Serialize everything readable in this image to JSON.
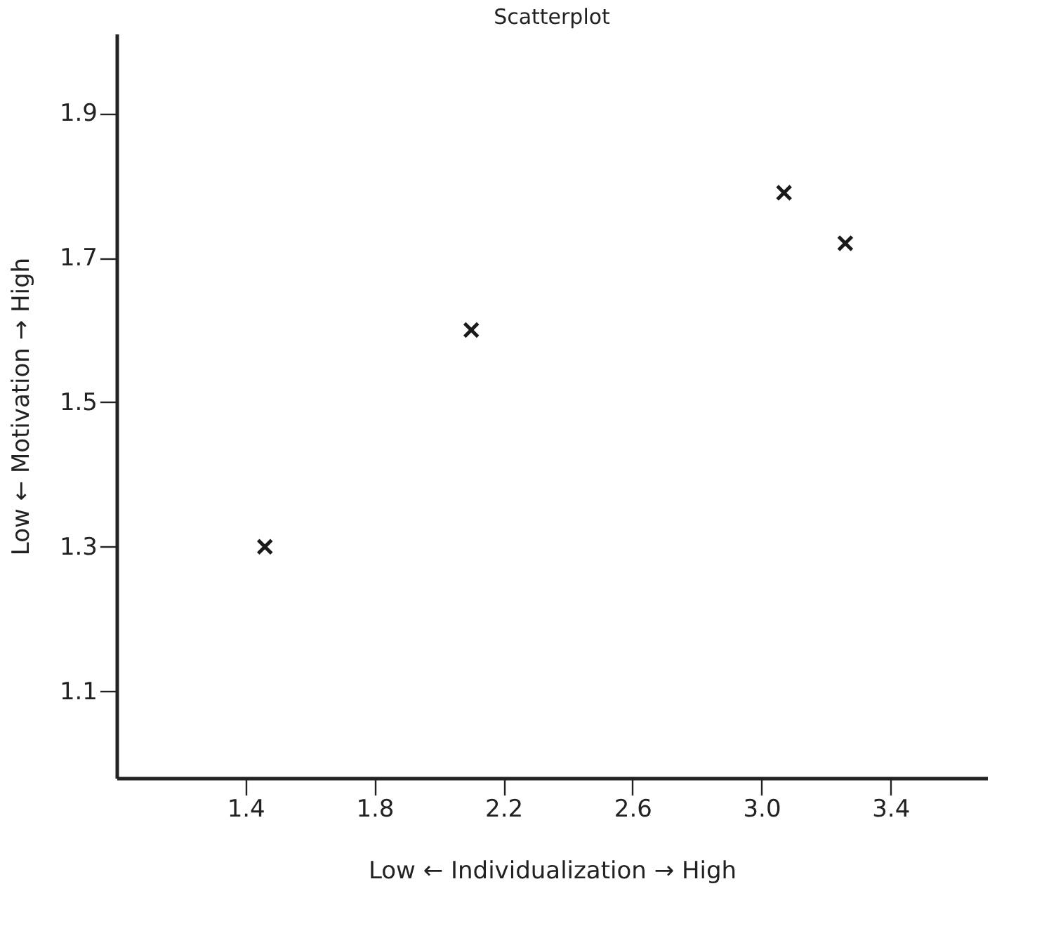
{
  "chart_data": {
    "type": "scatter",
    "title": "Scatterplot",
    "xlabel": "Low ← Individualization → High",
    "ylabel": "Low ← Motivation → High",
    "x": [
      1.46,
      2.1,
      3.07,
      3.26
    ],
    "series": [
      {
        "color": "#1a1a1a",
        "values": [
          1.3,
          1.6,
          1.79,
          1.72
        ]
      }
    ],
    "marker": "cross",
    "xlim": [
      1.0,
      3.7
    ],
    "xticks": [
      {
        "value": 1.4,
        "label": "1.4"
      },
      {
        "value": 1.8,
        "label": "1.8"
      },
      {
        "value": 2.2,
        "label": "2.2"
      },
      {
        "value": 2.6,
        "label": "2.6"
      },
      {
        "value": 3.0,
        "label": "3.0"
      },
      {
        "value": 3.4,
        "label": "3.4"
      }
    ],
    "ylim": [
      0.98,
      2.01
    ],
    "yticks": [
      {
        "value": 1.1,
        "label": "1.1"
      },
      {
        "value": 1.3,
        "label": "1.3"
      },
      {
        "value": 1.5,
        "label": "1.5"
      },
      {
        "value": 1.7,
        "label": "1.7"
      },
      {
        "value": 1.9,
        "label": "1.9"
      }
    ],
    "grid": false
  }
}
